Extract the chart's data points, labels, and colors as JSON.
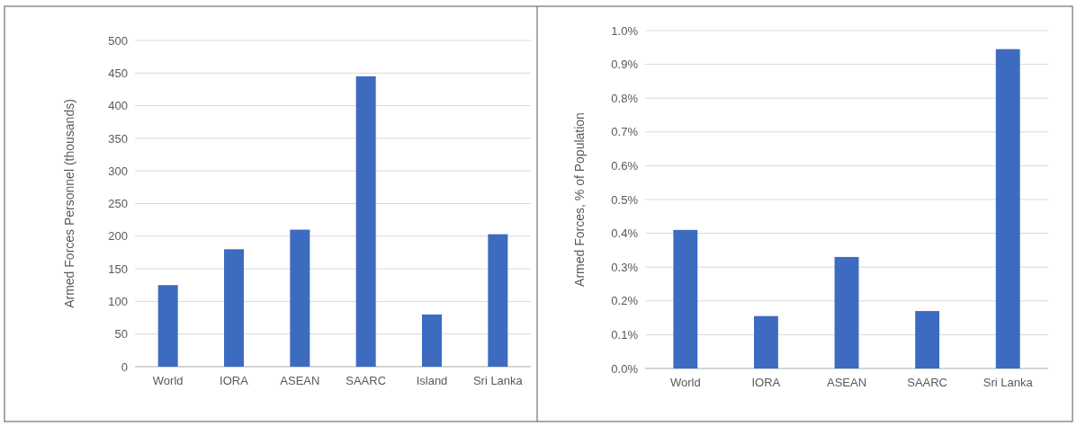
{
  "chart_data": [
    {
      "type": "bar",
      "ylabel": "Armed Forces Personnel (thousands)",
      "categories": [
        "World",
        "IORA",
        "ASEAN",
        "SAARC",
        "Island",
        "Sri Lanka"
      ],
      "series": [
        {
          "color": "#3d6bc0",
          "values": [
            125,
            180,
            210,
            445,
            80,
            203
          ]
        }
      ],
      "ylim": [
        0,
        500
      ],
      "yticks": [
        0,
        50,
        100,
        150,
        200,
        250,
        300,
        350,
        400,
        450,
        500
      ],
      "grid": "y"
    },
    {
      "type": "bar",
      "ylabel": "Armed Forces, % of Population",
      "categories": [
        "World",
        "IORA",
        "ASEAN",
        "SAARC",
        "Sri Lanka"
      ],
      "series": [
        {
          "color": "#3d6bc0",
          "values": [
            0.41,
            0.155,
            0.33,
            0.17,
            0.945
          ]
        }
      ],
      "ylim": [
        0,
        1
      ],
      "yticks": [
        {
          "value": 0,
          "label": "0.0%"
        },
        {
          "value": 0.1,
          "label": "0.1%"
        },
        {
          "value": 0.2,
          "label": "0.2%"
        },
        {
          "value": 0.3,
          "label": "0.3%"
        },
        {
          "value": 0.4,
          "label": "0.4%"
        },
        {
          "value": 0.5,
          "label": "0.5%"
        },
        {
          "value": 0.6,
          "label": "0.6%"
        },
        {
          "value": 0.7,
          "label": "0.7%"
        },
        {
          "value": 0.8,
          "label": "0.8%"
        },
        {
          "value": 0.9,
          "label": "0.9%"
        },
        {
          "value": 1,
          "label": "1.0%"
        }
      ],
      "grid": "y"
    }
  ]
}
